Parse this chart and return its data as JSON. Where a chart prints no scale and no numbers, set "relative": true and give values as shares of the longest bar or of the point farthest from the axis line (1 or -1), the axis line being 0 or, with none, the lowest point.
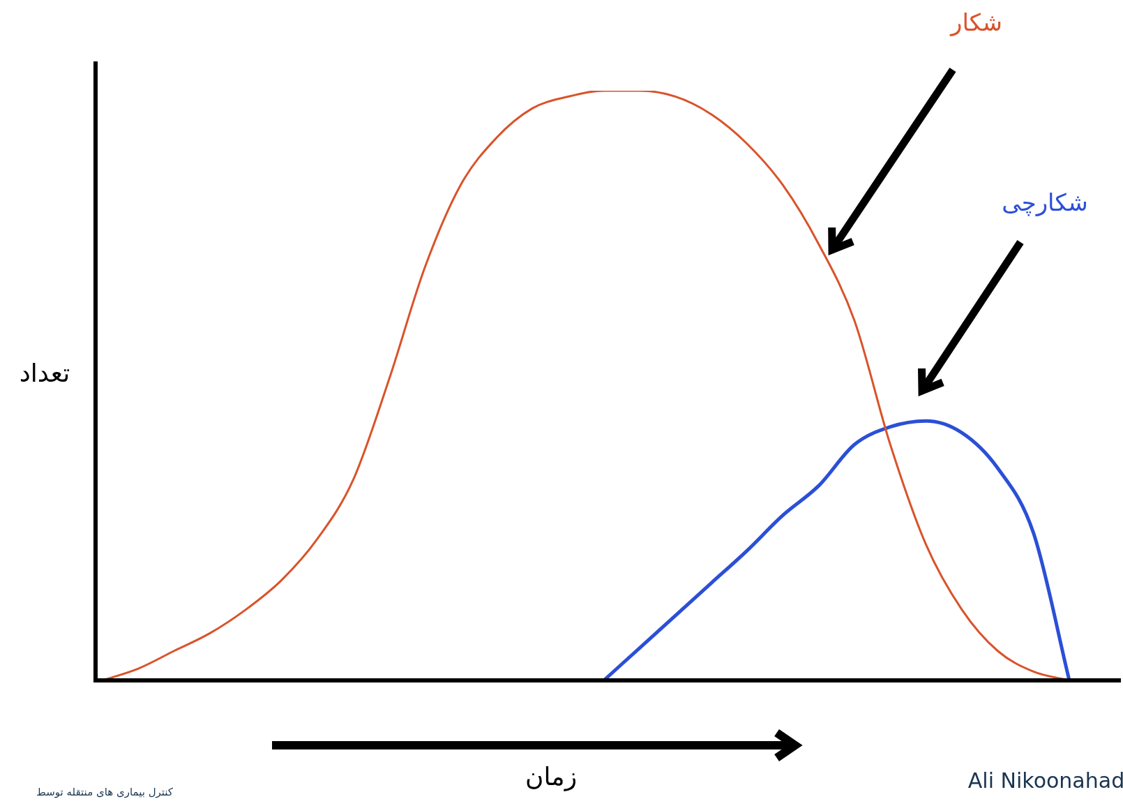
{
  "chart_data": {
    "type": "line",
    "relative": true,
    "xlabel": "زمان",
    "ylabel": "تعداد",
    "categories": [
      null,
      null,
      null,
      null,
      null,
      null,
      null,
      null,
      null,
      null,
      null,
      null,
      null,
      null,
      null,
      null,
      null,
      null,
      null,
      null,
      null,
      null,
      null,
      null,
      null,
      null,
      null,
      null
    ],
    "series": [
      {
        "name": "شکار",
        "color": "#d9532b",
        "values": [
          0,
          0.02,
          0.05,
          0.08,
          0.12,
          0.17,
          0.24,
          0.34,
          0.51,
          0.7,
          0.84,
          0.92,
          0.97,
          0.99,
          1,
          1,
          0.99,
          0.96,
          0.91,
          0.84,
          0.74,
          0.61,
          0.4,
          0.23,
          0.12,
          0.05,
          0.015,
          0
        ]
      },
      {
        "name": "شکارچی",
        "color": "#2b4fd6",
        "values": [
          null,
          null,
          null,
          null,
          null,
          null,
          null,
          null,
          null,
          null,
          null,
          null,
          null,
          null,
          0,
          0.055,
          0.11,
          0.165,
          0.22,
          0.28,
          0.33,
          0.4,
          0.43,
          0.44,
          0.42,
          0.36,
          0.25,
          0
        ]
      }
    ],
    "legend": false,
    "marker": "none",
    "line_style": "solid",
    "annotations": [
      "Ali Nikoonahad",
      "کنترل بیماری های منتقله توسط"
    ]
  }
}
